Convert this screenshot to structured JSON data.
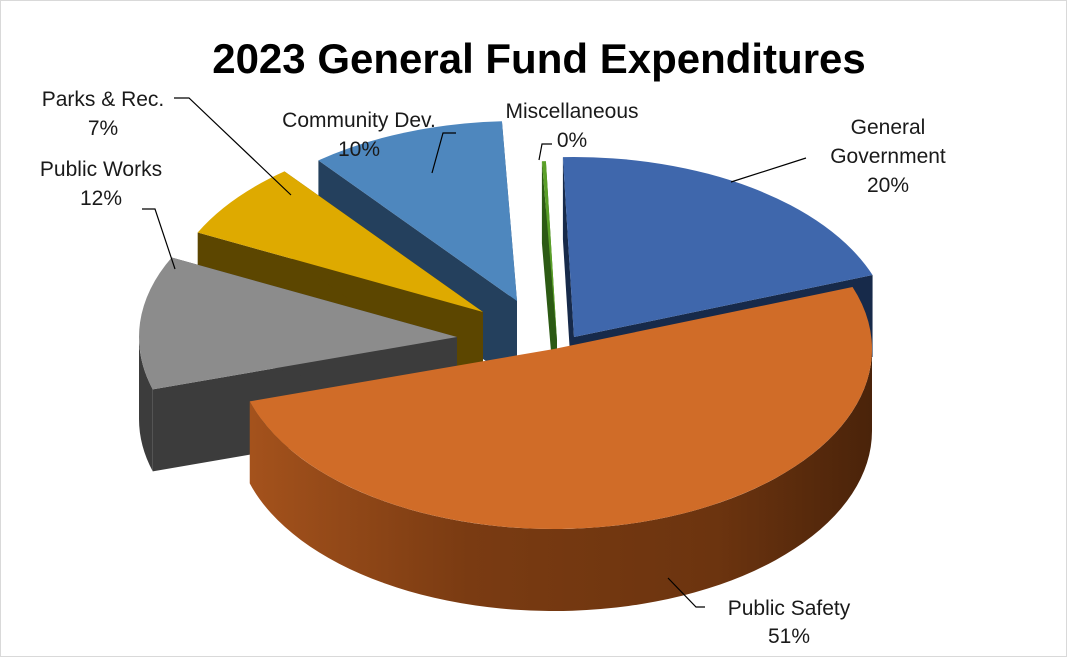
{
  "chart_data": {
    "type": "pie",
    "title": "2023 General Fund Expenditures",
    "data_labels_format": "category and percent",
    "legend": "none",
    "slices": [
      {
        "name": "General Government",
        "label_lines": [
          "General",
          "Government"
        ],
        "value": 20,
        "value_label": "20%",
        "color": "#3f67ac",
        "exploded": false
      },
      {
        "name": "Public Safety",
        "label_lines": [
          "Public Safety"
        ],
        "value": 51,
        "value_label": "51%",
        "color": "#d06c28",
        "exploded": true
      },
      {
        "name": "Public Works",
        "label_lines": [
          "Public Works"
        ],
        "value": 12,
        "value_label": "12%",
        "color": "#8c8c8c",
        "exploded": true
      },
      {
        "name": "Parks & Rec.",
        "label_lines": [
          "Parks & Rec."
        ],
        "value": 7,
        "value_label": "7%",
        "color": "#deaa00",
        "exploded": true
      },
      {
        "name": "Community Dev.",
        "label_lines": [
          "Community Dev."
        ],
        "value": 10,
        "value_label": "10%",
        "color": "#4e87be",
        "exploded": true
      },
      {
        "name": "Miscellaneous",
        "label_lines": [
          "Miscellaneous"
        ],
        "value": 0.2,
        "value_label": "0%",
        "color": "#5aa028",
        "exploded": false
      }
    ]
  }
}
